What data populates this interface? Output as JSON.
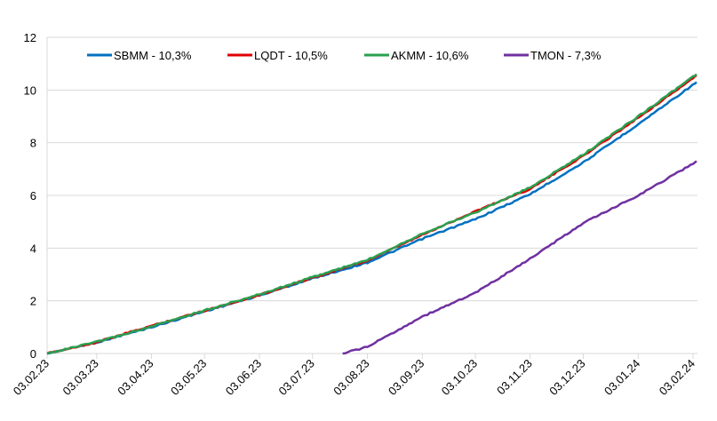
{
  "chart_data": {
    "type": "line",
    "x_tick_labels": [
      "03.02.23",
      "03.03.23",
      "03.04.23",
      "03.05.23",
      "03.06.23",
      "03.07.23",
      "03.08.23",
      "03.09.23",
      "03.10.23",
      "03.11.23",
      "03.12.23",
      "03.01.24",
      "03.02.24"
    ],
    "y_tick_labels": [
      "0",
      "2",
      "4",
      "6",
      "8",
      "10",
      "12"
    ],
    "ylim": [
      0,
      12
    ],
    "grid": true,
    "legend_position": "top",
    "series": [
      {
        "name": "SBMM - 10,3%",
        "color": "#0070c0",
        "points": [
          [
            "03.02.23",
            0
          ],
          [
            "03.03.23",
            0.42
          ],
          [
            "03.04.23",
            1.0
          ],
          [
            "03.05.23",
            1.6
          ],
          [
            "03.06.23",
            2.2
          ],
          [
            "03.07.23",
            2.85
          ],
          [
            "03.08.23",
            3.45
          ],
          [
            "03.09.23",
            4.35
          ],
          [
            "03.10.23",
            5.1
          ],
          [
            "03.11.23",
            6.05
          ],
          [
            "03.12.23",
            7.25
          ],
          [
            "03.01.24",
            8.7
          ],
          [
            "03.02.24",
            10.2
          ],
          [
            "05.02.24",
            10.3
          ]
        ]
      },
      {
        "name": "LQDT - 10,5%",
        "color": "#e00000",
        "points": [
          [
            "03.02.23",
            0
          ],
          [
            "03.03.23",
            0.43
          ],
          [
            "03.04.23",
            1.05
          ],
          [
            "03.05.23",
            1.63
          ],
          [
            "03.06.23",
            2.22
          ],
          [
            "03.07.23",
            2.88
          ],
          [
            "03.08.23",
            3.52
          ],
          [
            "03.09.23",
            4.5
          ],
          [
            "03.10.23",
            5.4
          ],
          [
            "03.11.23",
            6.25
          ],
          [
            "03.12.23",
            7.5
          ],
          [
            "03.01.24",
            8.95
          ],
          [
            "03.02.24",
            10.45
          ],
          [
            "05.02.24",
            10.55
          ]
        ]
      },
      {
        "name": "AKMM - 10,6%",
        "color": "#2aa050",
        "points": [
          [
            "03.02.23",
            0
          ],
          [
            "03.03.23",
            0.44
          ],
          [
            "03.04.23",
            1.02
          ],
          [
            "03.05.23",
            1.64
          ],
          [
            "03.06.23",
            2.24
          ],
          [
            "03.07.23",
            2.9
          ],
          [
            "03.08.23",
            3.55
          ],
          [
            "03.09.23",
            4.55
          ],
          [
            "03.10.23",
            5.35
          ],
          [
            "03.11.23",
            6.3
          ],
          [
            "03.12.23",
            7.55
          ],
          [
            "03.01.24",
            9.0
          ],
          [
            "03.02.24",
            10.5
          ],
          [
            "05.02.24",
            10.6
          ]
        ]
      },
      {
        "name": "TMON - 7,3%",
        "color": "#7030a0",
        "points": [
          [
            "20.07.23",
            0
          ],
          [
            "03.08.23",
            0.25
          ],
          [
            "03.09.23",
            1.4
          ],
          [
            "03.10.23",
            2.3
          ],
          [
            "03.11.23",
            3.6
          ],
          [
            "03.12.23",
            4.95
          ],
          [
            "03.01.24",
            6.0
          ],
          [
            "03.02.24",
            7.2
          ],
          [
            "05.02.24",
            7.3
          ]
        ]
      }
    ]
  }
}
